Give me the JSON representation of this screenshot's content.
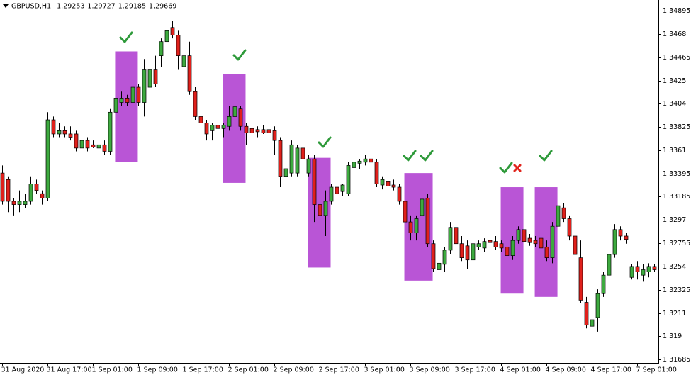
{
  "chart_data": {
    "type": "candlestick",
    "title": "GBPUSD,H1",
    "quote": [
      1.29253,
      1.29727,
      1.29185,
      1.29669
    ],
    "up_color": "#3daa3f",
    "down_color": "#e0201b",
    "zone_color": "#b955d6",
    "xlim": [
      -0.4,
      115.7
    ],
    "ylim": [
      1.31652,
      1.34993
    ],
    "yticks": [
      1.34895,
      1.3468,
      1.34465,
      1.3425,
      1.3404,
      1.33825,
      1.3361,
      1.33395,
      1.33185,
      1.3297,
      1.32755,
      1.3254,
      1.32325,
      1.3211,
      1.319,
      1.31685
    ],
    "xticks": [
      {
        "value": 0,
        "label": "31 Aug 2020"
      },
      {
        "value": 8,
        "label": "31 Aug 17:00"
      },
      {
        "value": 16,
        "label": "1 Sep 01:00"
      },
      {
        "value": 24,
        "label": "1 Sep 09:00"
      },
      {
        "value": 32,
        "label": "1 Sep 17:00"
      },
      {
        "value": 40,
        "label": "2 Sep 01:00"
      },
      {
        "value": 48,
        "label": "2 Sep 09:00"
      },
      {
        "value": 56,
        "label": "2 Sep 17:00"
      },
      {
        "value": 64,
        "label": "3 Sep 01:00"
      },
      {
        "value": 72,
        "label": "3 Sep 09:00"
      },
      {
        "value": 80,
        "label": "3 Sep 17:00"
      },
      {
        "value": 88,
        "label": "4 Sep 01:00"
      },
      {
        "value": 96,
        "label": "4 Sep 09:00"
      },
      {
        "value": 104,
        "label": "4 Sep 17:00"
      },
      {
        "value": 112,
        "label": "7 Sep 01:00"
      }
    ],
    "zones": [
      {
        "x": [
          19.9,
          23.9
        ],
        "y": [
          1.335,
          1.3452
        ]
      },
      {
        "x": [
          38.9,
          42.9
        ],
        "y": [
          1.3331,
          1.3431
        ]
      },
      {
        "x": [
          53.9,
          57.9
        ],
        "y": [
          1.3253,
          1.3354
        ]
      },
      {
        "x": [
          70.9,
          75.9
        ],
        "y": [
          1.3241,
          1.334
        ]
      },
      {
        "x": [
          87.9,
          91.9
        ],
        "y": [
          1.3229,
          1.3327
        ]
      },
      {
        "x": [
          93.9,
          97.9
        ],
        "y": [
          1.3226,
          1.3327
        ]
      }
    ],
    "ohlc": [
      [
        1.334,
        1.3347,
        1.3311,
        1.3314
      ],
      [
        1.3334,
        1.3337,
        1.3304,
        1.3314
      ],
      [
        1.3314,
        1.3317,
        1.3301,
        1.3311
      ],
      [
        1.3311,
        1.3324,
        1.3304,
        1.3314
      ],
      [
        1.3311,
        1.3321,
        1.3308,
        1.3314
      ],
      [
        1.3314,
        1.3337,
        1.3311,
        1.333
      ],
      [
        1.333,
        1.3334,
        1.3321,
        1.3324
      ],
      [
        1.3321,
        1.3324,
        1.3311,
        1.3317
      ],
      [
        1.3317,
        1.3396,
        1.3314,
        1.3389
      ],
      [
        1.3389,
        1.3392,
        1.3373,
        1.3376
      ],
      [
        1.3376,
        1.3386,
        1.3373,
        1.3379
      ],
      [
        1.3379,
        1.3383,
        1.3373,
        1.3376
      ],
      [
        1.3376,
        1.3383,
        1.337,
        1.3373
      ],
      [
        1.3376,
        1.3379,
        1.336,
        1.3363
      ],
      [
        1.3363,
        1.3373,
        1.336,
        1.337
      ],
      [
        1.337,
        1.3373,
        1.336,
        1.3363
      ],
      [
        1.3366,
        1.337,
        1.3363,
        1.3364
      ],
      [
        1.3363,
        1.337,
        1.336,
        1.3366
      ],
      [
        1.3366,
        1.337,
        1.3357,
        1.336
      ],
      [
        1.336,
        1.3399,
        1.3357,
        1.3396
      ],
      [
        1.3396,
        1.3415,
        1.3392,
        1.3409
      ],
      [
        1.3405,
        1.3415,
        1.3402,
        1.3409
      ],
      [
        1.3409,
        1.3412,
        1.3402,
        1.3405
      ],
      [
        1.3405,
        1.3422,
        1.3402,
        1.3419
      ],
      [
        1.3419,
        1.3422,
        1.3402,
        1.3405
      ],
      [
        1.3405,
        1.3445,
        1.3392,
        1.3435
      ],
      [
        1.3419,
        1.3448,
        1.3412,
        1.3435
      ],
      [
        1.3435,
        1.3448,
        1.3419,
        1.3422
      ],
      [
        1.3448,
        1.3464,
        1.3438,
        1.3461
      ],
      [
        1.3461,
        1.3484,
        1.3458,
        1.3471
      ],
      [
        1.3474,
        1.348,
        1.3464,
        1.3467
      ],
      [
        1.3467,
        1.3471,
        1.3435,
        1.3448
      ],
      [
        1.3438,
        1.3451,
        1.3435,
        1.3448
      ],
      [
        1.3448,
        1.3461,
        1.3412,
        1.3415
      ],
      [
        1.3415,
        1.3419,
        1.3389,
        1.3392
      ],
      [
        1.3392,
        1.3396,
        1.3383,
        1.3386
      ],
      [
        1.3386,
        1.3389,
        1.337,
        1.3376
      ],
      [
        1.3379,
        1.3386,
        1.337,
        1.3384
      ],
      [
        1.3384,
        1.3386,
        1.3379,
        1.3381
      ],
      [
        1.3381,
        1.3386,
        1.3373,
        1.3384
      ],
      [
        1.3383,
        1.3402,
        1.3379,
        1.3392
      ],
      [
        1.3392,
        1.3404,
        1.3389,
        1.3401
      ],
      [
        1.3399,
        1.3402,
        1.3379,
        1.3383
      ],
      [
        1.3383,
        1.3386,
        1.3366,
        1.3377
      ],
      [
        1.3381,
        1.3384,
        1.3376,
        1.3377
      ],
      [
        1.338,
        1.3383,
        1.3373,
        1.3378
      ],
      [
        1.338,
        1.3384,
        1.3376,
        1.3377
      ],
      [
        1.338,
        1.3383,
        1.337,
        1.3377
      ],
      [
        1.3379,
        1.3383,
        1.3357,
        1.337
      ],
      [
        1.337,
        1.3373,
        1.3327,
        1.3337
      ],
      [
        1.3337,
        1.3347,
        1.3334,
        1.3344
      ],
      [
        1.334,
        1.337,
        1.3337,
        1.3366
      ],
      [
        1.334,
        1.3366,
        1.3337,
        1.3363
      ],
      [
        1.3363,
        1.3366,
        1.334,
        1.3353
      ],
      [
        1.334,
        1.3357,
        1.3337,
        1.3353
      ],
      [
        1.3353,
        1.3357,
        1.3295,
        1.3311
      ],
      [
        1.3311,
        1.3324,
        1.3288,
        1.3301
      ],
      [
        1.3301,
        1.3324,
        1.3282,
        1.3314
      ],
      [
        1.3314,
        1.333,
        1.3311,
        1.3327
      ],
      [
        1.3327,
        1.333,
        1.3317,
        1.3321
      ],
      [
        1.3323,
        1.333,
        1.3319,
        1.3329
      ],
      [
        1.3321,
        1.335,
        1.3319,
        1.3347
      ],
      [
        1.3345,
        1.3353,
        1.3342,
        1.335
      ],
      [
        1.3349,
        1.3353,
        1.3344,
        1.3351
      ],
      [
        1.335,
        1.3357,
        1.3347,
        1.3353
      ],
      [
        1.3353,
        1.336,
        1.3347,
        1.335
      ],
      [
        1.335,
        1.3353,
        1.3327,
        1.333
      ],
      [
        1.3329,
        1.3337,
        1.3325,
        1.3334
      ],
      [
        1.3332,
        1.3336,
        1.3323,
        1.3328
      ],
      [
        1.3329,
        1.3334,
        1.3324,
        1.3327
      ],
      [
        1.3327,
        1.333,
        1.3311,
        1.3314
      ],
      [
        1.3314,
        1.3321,
        1.3291,
        1.3295
      ],
      [
        1.3295,
        1.3301,
        1.3278,
        1.3285
      ],
      [
        1.3285,
        1.3301,
        1.3278,
        1.3298
      ],
      [
        1.3301,
        1.3319,
        1.3285,
        1.3316
      ],
      [
        1.3317,
        1.3321,
        1.3272,
        1.3275
      ],
      [
        1.3275,
        1.3278,
        1.3249,
        1.3252
      ],
      [
        1.3251,
        1.3262,
        1.3246,
        1.3257
      ],
      [
        1.3256,
        1.3272,
        1.3249,
        1.3269
      ],
      [
        1.3269,
        1.3295,
        1.3265,
        1.329
      ],
      [
        1.329,
        1.3295,
        1.3272,
        1.3275
      ],
      [
        1.3275,
        1.3282,
        1.3259,
        1.3262
      ],
      [
        1.3273,
        1.3278,
        1.3252,
        1.326
      ],
      [
        1.326,
        1.3278,
        1.3257,
        1.3275
      ],
      [
        1.3272,
        1.3278,
        1.3269,
        1.3275
      ],
      [
        1.3271,
        1.328,
        1.3267,
        1.3277
      ],
      [
        1.3278,
        1.3282,
        1.3275,
        1.3276
      ],
      [
        1.3277,
        1.3282,
        1.3269,
        1.3272
      ],
      [
        1.3275,
        1.3278,
        1.3267,
        1.3271
      ],
      [
        1.3272,
        1.3278,
        1.326,
        1.3264
      ],
      [
        1.3264,
        1.3282,
        1.326,
        1.3278
      ],
      [
        1.3278,
        1.3291,
        1.3275,
        1.3288
      ],
      [
        1.3288,
        1.3291,
        1.3273,
        1.3277
      ],
      [
        1.328,
        1.3284,
        1.3273,
        1.3276
      ],
      [
        1.3278,
        1.3282,
        1.3272,
        1.3275
      ],
      [
        1.328,
        1.3284,
        1.3267,
        1.3271
      ],
      [
        1.3272,
        1.3278,
        1.3259,
        1.3262
      ],
      [
        1.3262,
        1.3295,
        1.3257,
        1.3291
      ],
      [
        1.3291,
        1.3314,
        1.3288,
        1.331
      ],
      [
        1.3308,
        1.3312,
        1.3295,
        1.3298
      ],
      [
        1.3298,
        1.3301,
        1.3278,
        1.3282
      ],
      [
        1.3282,
        1.3285,
        1.3262,
        1.3265
      ],
      [
        1.3262,
        1.3278,
        1.322,
        1.3223
      ],
      [
        1.3221,
        1.3226,
        1.3197,
        1.32
      ],
      [
        1.3199,
        1.3208,
        1.3175,
        1.3205
      ],
      [
        1.3207,
        1.3233,
        1.3194,
        1.3229
      ],
      [
        1.3229,
        1.3249,
        1.3226,
        1.3246
      ],
      [
        1.3246,
        1.3269,
        1.3242,
        1.3265
      ],
      [
        1.3265,
        1.3293,
        1.3262,
        1.3288
      ],
      [
        1.3288,
        1.3291,
        1.3278,
        1.3282
      ],
      [
        1.3282,
        1.3285,
        1.3275,
        1.3279
      ],
      [
        1.3244,
        1.3256,
        1.3242,
        1.3254
      ],
      [
        1.3254,
        1.3259,
        1.3242,
        1.3249
      ],
      [
        1.3246,
        1.3256,
        1.324,
        1.3251
      ],
      [
        1.3249,
        1.3257,
        1.3244,
        1.3254
      ],
      [
        1.3254,
        1.3256,
        1.3249,
        1.3251
      ]
    ]
  }
}
